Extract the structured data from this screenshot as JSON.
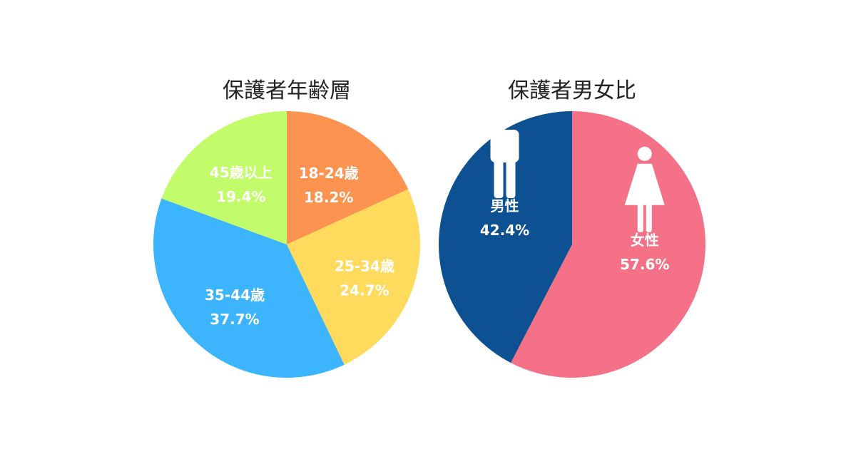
{
  "chart_data": [
    {
      "type": "pie",
      "title": "保護者年齢層",
      "slices": [
        {
          "label": "18-24歳",
          "value": 18.2,
          "value_label": "18.2%",
          "color": "#FD9350"
        },
        {
          "label": "25-34歳",
          "value": 24.7,
          "value_label": "24.7%",
          "color": "#FEDB5D"
        },
        {
          "label": "35-44歳",
          "value": 37.7,
          "value_label": "37.7%",
          "color": "#3CB4FE"
        },
        {
          "label": "45歳以上",
          "value": 19.4,
          "value_label": "19.4%",
          "color": "#C2FC6A"
        }
      ]
    },
    {
      "type": "pie",
      "title": "保護者男女比",
      "slices": [
        {
          "label": "女性",
          "value": 57.6,
          "value_label": "57.6%",
          "color": "#F47187",
          "icon": "female-icon"
        },
        {
          "label": "男性",
          "value": 42.4,
          "value_label": "42.4%",
          "color": "#0E5193",
          "icon": "male-icon"
        }
      ]
    }
  ]
}
